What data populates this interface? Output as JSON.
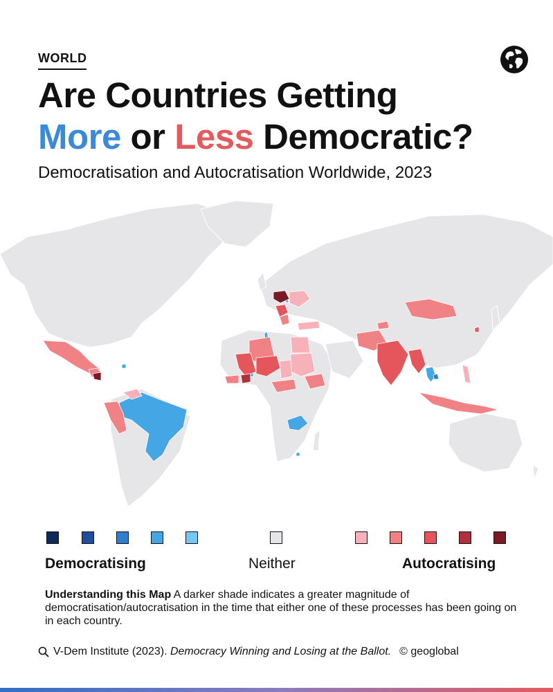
{
  "header": {
    "category": "WORLD",
    "title_line1": "Are Countries Getting",
    "title_more": "More",
    "title_or": " or ",
    "title_less": "Less",
    "title_end": " Democratic?",
    "subtitle": "Democratisation and Autocratisation Worldwide, 2023",
    "icon": "globe-icon"
  },
  "colors": {
    "more": "#3a8ad8",
    "less": "#e45b5f",
    "neither": "#e6e5e7",
    "democratising": [
      "#0e2a5a",
      "#1f4da0",
      "#2f7fd0",
      "#45a6e6",
      "#74c8f3"
    ],
    "autocratising": [
      "#f7b1b8",
      "#f08185",
      "#e4565c",
      "#b0313d",
      "#7a1a25"
    ]
  },
  "legend": {
    "democratising_label": "Democratising",
    "neither_label": "Neither",
    "autocratising_label": "Autocratising"
  },
  "note": {
    "heading": "Understanding this Map",
    "text": " A darker shade indicates a greater magnitude of democratisation/autocratisation in the time that either one of these processes has been going on in each country."
  },
  "source": {
    "prefix": "V-Dem Institute (2023). ",
    "title": "Democracy Winning and Losing at the Ballot.",
    "brand": "© geoglobal"
  }
}
